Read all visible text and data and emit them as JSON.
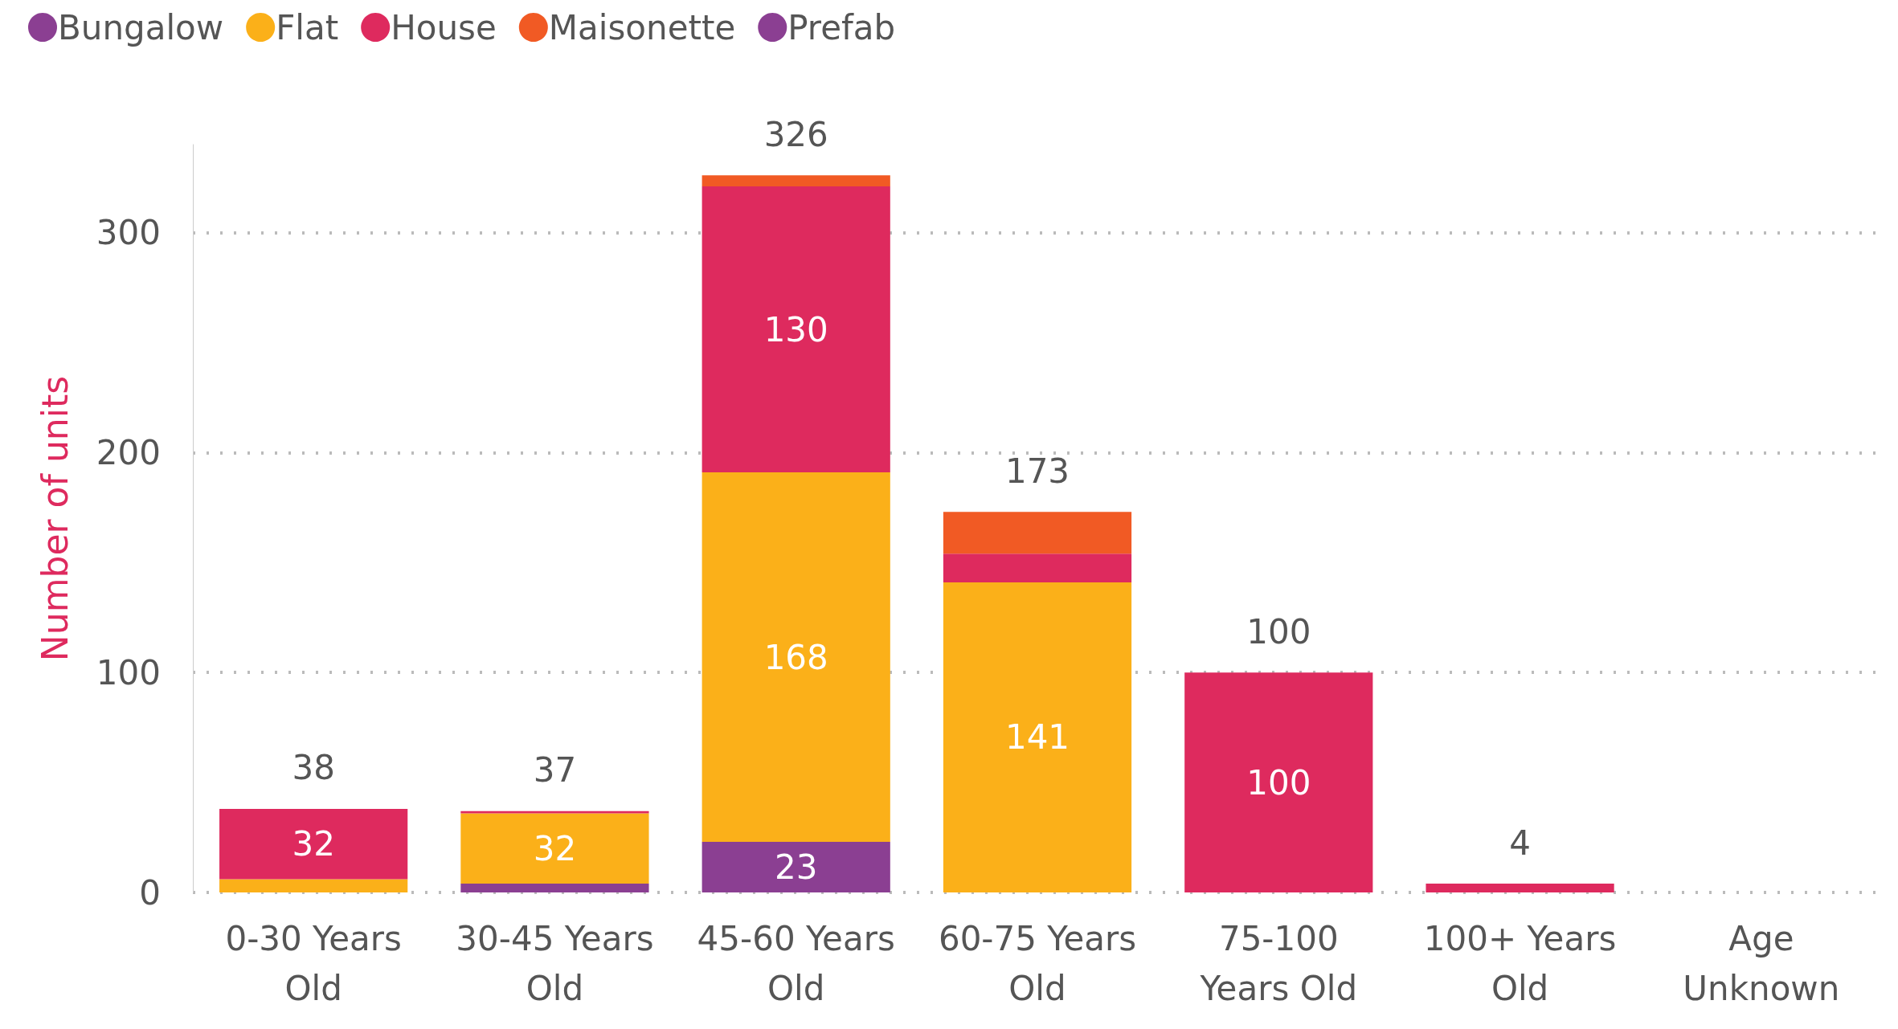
{
  "chart_data": {
    "type": "bar",
    "stacked": true,
    "ylabel": "Number of units",
    "categories": [
      "0-30 Years\nOld",
      "30-45 Years\nOld",
      "45-60 Years\nOld",
      "60-75 Years\nOld",
      "75-100\nYears Old",
      "100+ Years\nOld",
      "Age\nUnknown"
    ],
    "series": [
      {
        "name": "Bungalow",
        "color": "#8b3f92",
        "values": [
          null,
          4,
          23,
          null,
          null,
          null,
          null
        ],
        "value_labels": [
          null,
          null,
          "23",
          null,
          null,
          null,
          null
        ]
      },
      {
        "name": "Flat",
        "color": "#fbb019",
        "values": [
          6,
          32,
          168,
          141,
          null,
          null,
          null
        ],
        "value_labels": [
          null,
          "32",
          "168",
          "141",
          null,
          null,
          null
        ]
      },
      {
        "name": "House",
        "color": "#de2a5e",
        "values": [
          32,
          1,
          130,
          13,
          100,
          4,
          null
        ],
        "value_labels": [
          "32",
          null,
          "130",
          null,
          "100",
          null,
          null
        ]
      },
      {
        "name": "Maisonette",
        "color": "#f15a24",
        "values": [
          null,
          null,
          5,
          19,
          null,
          null,
          null
        ],
        "value_labels": [
          null,
          null,
          null,
          null,
          null,
          null,
          null
        ]
      },
      {
        "name": "Prefab",
        "color": "#8b3f92",
        "values": [
          null,
          null,
          null,
          null,
          null,
          null,
          null
        ],
        "value_labels": [
          null,
          null,
          null,
          null,
          null,
          null,
          null
        ]
      }
    ],
    "totals": [
      "38",
      "37",
      "326",
      "173",
      "100",
      "4",
      null
    ],
    "ylim": [
      0,
      340
    ],
    "yticks": [
      0,
      100,
      200,
      300
    ],
    "grid": "y",
    "legend": "top left"
  }
}
